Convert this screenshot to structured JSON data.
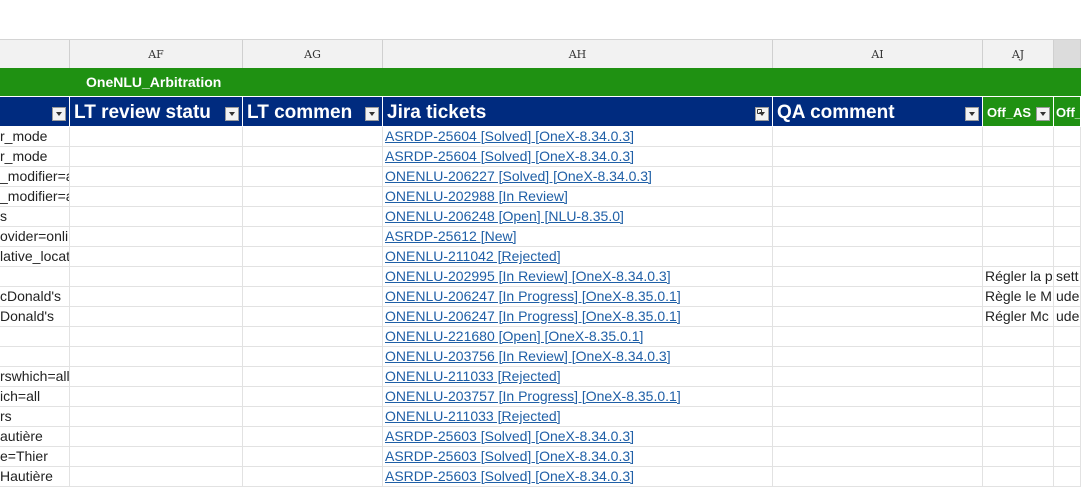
{
  "columns": [
    "AF",
    "AG",
    "AH",
    "AI",
    "AJ"
  ],
  "band_title": "OneNLU_Arbitration",
  "headers": {
    "lt_review_status": "LT review statu",
    "lt_comment": "LT commen",
    "jira_tickets": "Jira tickets",
    "qa_comment": "QA comment",
    "off_as": "Off_AS",
    "off_next": "Off_"
  },
  "rows": [
    {
      "left": "r_mode",
      "jira": "ASRDP-25604  [Solved]  [OneX-8.34.0.3]",
      "aj": "",
      "ak": ""
    },
    {
      "left": "r_mode",
      "jira": "ASRDP-25604  [Solved]  [OneX-8.34.0.3]",
      "aj": "",
      "ak": ""
    },
    {
      "left": "_modifier=automatic",
      "jira": "ONENLU-206227  [Solved]  [OneX-8.34.0.3]",
      "aj": "",
      "ak": ""
    },
    {
      "left": "_modifier=automatic",
      "jira": "ONENLU-202988  [In Review]",
      "aj": "",
      "ak": ""
    },
    {
      "left": "s",
      "jira": "ONENLU-206248  [Open]  [NLU-8.35.0]",
      "aj": "",
      "ak": ""
    },
    {
      "left": "ovider=online",
      "jira": "ASRDP-25612  [New]",
      "aj": "",
      "ak": ""
    },
    {
      "left": "lative_location=destination",
      "jira": "ONENLU-211042  [Rejected]",
      "aj": "",
      "ak": ""
    },
    {
      "left": "",
      "jira": "ONENLU-202995  [In Review]  [OneX-8.34.0.3]",
      "aj": "Régler la p",
      "ak": "sett"
    },
    {
      "left": "cDonald's",
      "jira": "ONENLU-206247  [In Progress]  [OneX-8.35.0.1]",
      "aj": "Règle le M",
      "ak": "ude"
    },
    {
      "left": "Donald's",
      "jira": "ONENLU-206247  [In Progress]  [OneX-8.35.0.1]",
      "aj": "Régler Mc",
      "ak": "ude"
    },
    {
      "left": "",
      "jira": "ONENLU-221680  [Open]  [OneX-8.35.0.1]",
      "aj": "",
      "ak": ""
    },
    {
      "left": "",
      "jira": "ONENLU-203756  [In Review]  [OneX-8.34.0.3]",
      "aj": "",
      "ak": ""
    },
    {
      "left": "rswhich=all",
      "jira": "ONENLU-211033  [Rejected]",
      "aj": "",
      "ak": ""
    },
    {
      "left": "ich=all",
      "jira": "ONENLU-203757  [In Progress]  [OneX-8.35.0.1]",
      "aj": "",
      "ak": ""
    },
    {
      "left": "rs",
      "jira": "ONENLU-211033  [Rejected]",
      "aj": "",
      "ak": ""
    },
    {
      "left": "autière",
      "jira": "ASRDP-25603  [Solved]  [OneX-8.34.0.3]",
      "aj": "",
      "ak": ""
    },
    {
      "left": "e=Thier",
      "jira": "ASRDP-25603  [Solved]  [OneX-8.34.0.3]",
      "aj": "",
      "ak": ""
    },
    {
      "left": "Hautière",
      "jira": "ASRDP-25603  [Solved]  [OneX-8.34.0.3]",
      "aj": "",
      "ak": ""
    }
  ]
}
